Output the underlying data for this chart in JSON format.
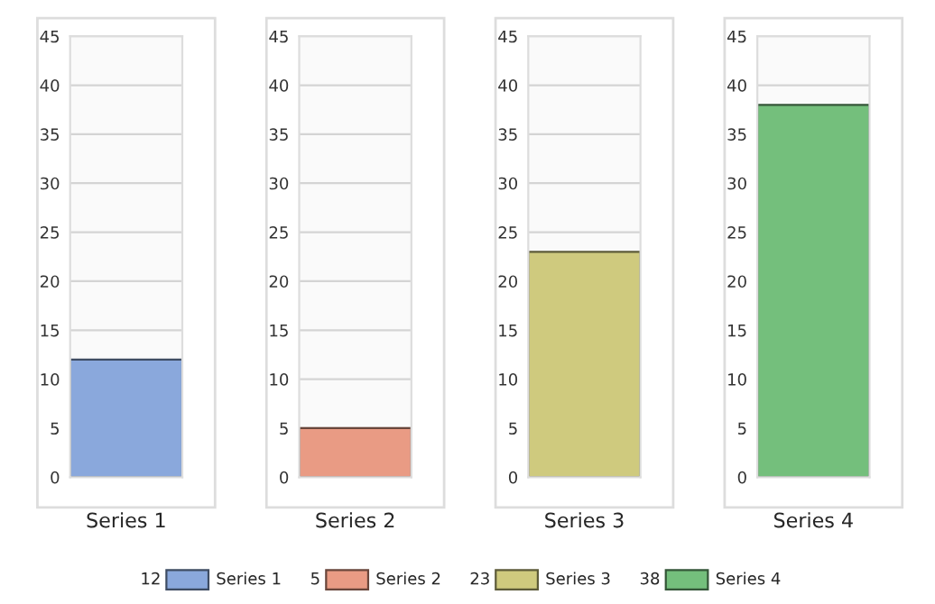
{
  "chart_data": [
    {
      "type": "bar",
      "categories": [
        "Series 1"
      ],
      "series": [
        {
          "name": "Series 1",
          "color": "#8aa8dc",
          "values": [
            12
          ]
        }
      ],
      "annotations": [
        "12"
      ],
      "ylim": [
        0,
        45
      ],
      "yticks": [
        0,
        5,
        10,
        15,
        20,
        25,
        30,
        35,
        40,
        45
      ],
      "grid": "y",
      "legend": "bottom"
    },
    {
      "type": "bar",
      "categories": [
        "Series 2"
      ],
      "series": [
        {
          "name": "Series 2",
          "color": "#e99b84",
          "values": [
            5
          ]
        }
      ],
      "annotations": [
        "5"
      ],
      "ylim": [
        0,
        45
      ],
      "yticks": [
        0,
        5,
        10,
        15,
        20,
        25,
        30,
        35,
        40,
        45
      ],
      "grid": "y",
      "legend": "bottom"
    },
    {
      "type": "bar",
      "categories": [
        "Series 3"
      ],
      "series": [
        {
          "name": "Series 3",
          "color": "#cfca7e",
          "values": [
            23
          ]
        }
      ],
      "annotations": [
        "23"
      ],
      "ylim": [
        0,
        45
      ],
      "yticks": [
        0,
        5,
        10,
        15,
        20,
        25,
        30,
        35,
        40,
        45
      ],
      "grid": "y",
      "legend": "bottom"
    },
    {
      "type": "bar",
      "categories": [
        "Series 4"
      ],
      "series": [
        {
          "name": "Series 4",
          "color": "#74bf7c",
          "values": [
            38
          ]
        }
      ],
      "annotations": [
        "38"
      ],
      "ylim": [
        0,
        45
      ],
      "yticks": [
        0,
        5,
        10,
        15,
        20,
        25,
        30,
        35,
        40,
        45
      ],
      "grid": "y",
      "legend": "bottom"
    }
  ]
}
